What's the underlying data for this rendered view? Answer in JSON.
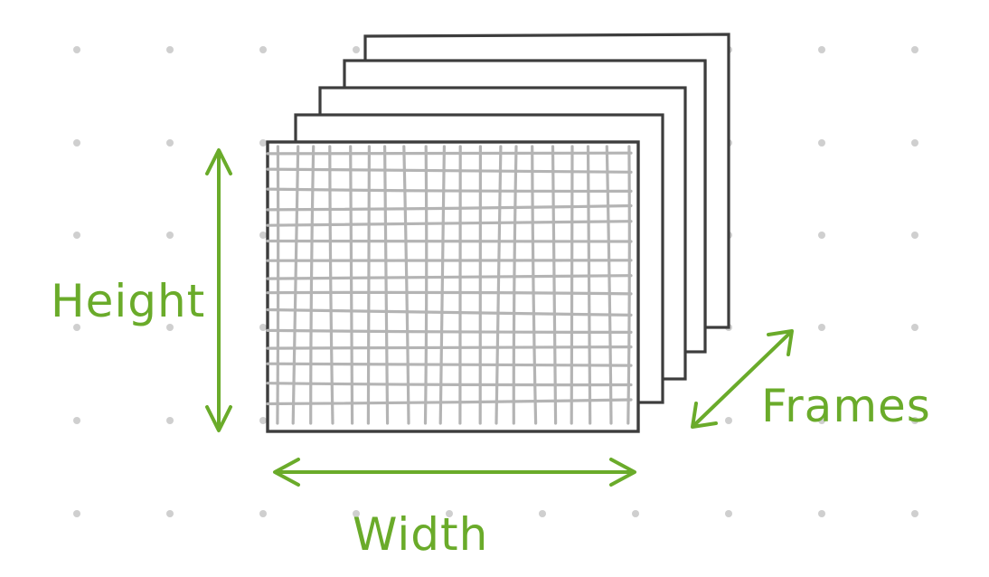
{
  "labels": {
    "height": "Height",
    "width": "Width",
    "frames": "Frames"
  },
  "colors": {
    "accent": "#6aab2a",
    "frame_stroke": "#3d3d3d",
    "grid_stroke": "#b4b4b4",
    "dot": "#cfcfcf",
    "background": "#ffffff"
  },
  "frame_stack_count": 5
}
